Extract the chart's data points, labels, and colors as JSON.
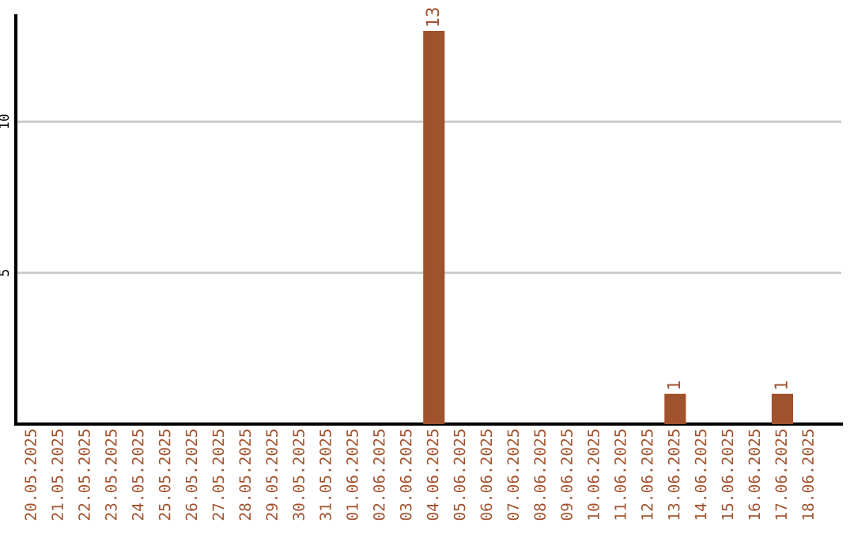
{
  "chart_data": {
    "type": "bar",
    "categories": [
      "20.05.2025",
      "21.05.2025",
      "22.05.2025",
      "23.05.2025",
      "24.05.2025",
      "25.05.2025",
      "26.05.2025",
      "27.05.2025",
      "28.05.2025",
      "29.05.2025",
      "30.05.2025",
      "31.05.2025",
      "01.06.2025",
      "02.06.2025",
      "03.06.2025",
      "04.06.2025",
      "05.06.2025",
      "06.06.2025",
      "07.06.2025",
      "08.06.2025",
      "09.06.2025",
      "10.06.2025",
      "11.06.2025",
      "12.06.2025",
      "13.06.2025",
      "14.06.2025",
      "15.06.2025",
      "16.06.2025",
      "17.06.2025",
      "18.06.2025"
    ],
    "values": [
      0,
      0,
      0,
      0,
      0,
      0,
      0,
      0,
      0,
      0,
      0,
      0,
      0,
      0,
      0,
      13,
      0,
      0,
      0,
      0,
      0,
      0,
      0,
      0,
      1,
      0,
      0,
      0,
      1,
      0
    ],
    "value_labels": [
      null,
      null,
      null,
      null,
      null,
      null,
      null,
      null,
      null,
      null,
      null,
      null,
      null,
      null,
      null,
      "13",
      null,
      null,
      null,
      null,
      null,
      null,
      null,
      null,
      "1",
      null,
      null,
      null,
      "1",
      null
    ],
    "color": "#a0522d",
    "ylim": [
      0,
      13.5
    ],
    "yticks": [
      5,
      10
    ],
    "grid": "y"
  }
}
